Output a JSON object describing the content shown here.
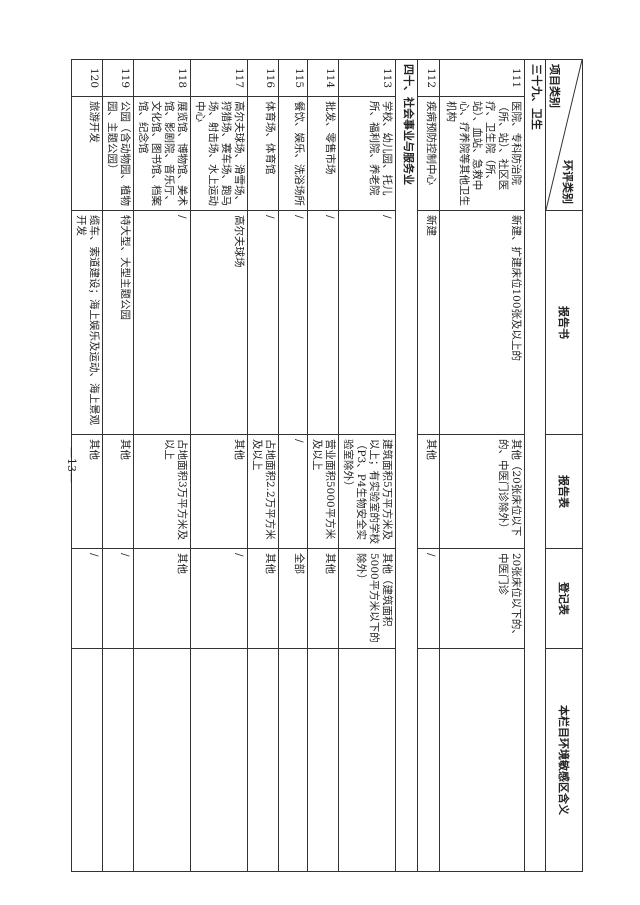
{
  "header": {
    "category_top": "环评类别",
    "category_bottom": "项目类别",
    "report_book": "报告书",
    "report_form": "报告表",
    "registration_form": "登记表",
    "sensitive_area": "本栏目环境敏感区含义"
  },
  "sections": [
    {
      "title": "三十九、卫生",
      "rows": [
        {
          "no": "111",
          "item": "医院、专科防治院（所、站）、社区医疗、卫生院（所、站）、血站、急救中心、疗养院等其他卫生机构",
          "book": "新建、扩建床位100张及以上的",
          "form": "其他（20张床位以下的、中医门诊除外）",
          "reg": "20张床位以下的、中医门诊",
          "area": ""
        },
        {
          "no": "112",
          "item": "疾病预防控制中心",
          "book": "新建",
          "form": "其他",
          "reg": "/",
          "area": ""
        }
      ]
    },
    {
      "title": "四十、社会事业与服务业",
      "rows": [
        {
          "no": "113",
          "item": "学校、幼儿园、托儿所、福利院、养老院",
          "book": "/",
          "form": "建筑面积5万平方米及以上；有实验室的学校（P3、P4生物安全实验室除外）",
          "reg": "其他（建筑面积5000平方米以下的除外）",
          "area": ""
        },
        {
          "no": "114",
          "item": "批发、零售市场",
          "book": "/",
          "form": "营业面积5000平方米及以上",
          "reg": "其他",
          "area": ""
        },
        {
          "no": "115",
          "item": "餐饮、娱乐、洗浴场所",
          "book": "/",
          "form": "/",
          "reg": "全部",
          "area": ""
        },
        {
          "no": "116",
          "item": "体育场、体育馆",
          "book": "/",
          "form": "占地面积2.2万平方米及以上",
          "reg": "其他",
          "area": ""
        },
        {
          "no": "117",
          "item": "高尔夫球场、滑雪场、狩猎场、赛车场、跑马场、射击场、水上运动中心",
          "book": "高尔夫球场",
          "form": "其他",
          "reg": "/",
          "area": ""
        },
        {
          "no": "118",
          "item": "展览馆、博物馆、美术馆、影剧院、音乐厅、文化馆、图书馆、档案馆、纪念馆",
          "book": "/",
          "form": "占地面积3万平方米及以上",
          "reg": "其他",
          "area": ""
        },
        {
          "no": "119",
          "item": "公园（含动物园、植物园、主题公园）",
          "book": "特大型、大型主题公园",
          "form": "其他",
          "reg": "/",
          "area": ""
        },
        {
          "no": "120",
          "item": "旅游开发",
          "book": "缆车、索道建设；海上娱乐及运动、海上景观开发",
          "form": "其他",
          "reg": "/",
          "area": ""
        }
      ]
    }
  ],
  "page_number": "—13—"
}
